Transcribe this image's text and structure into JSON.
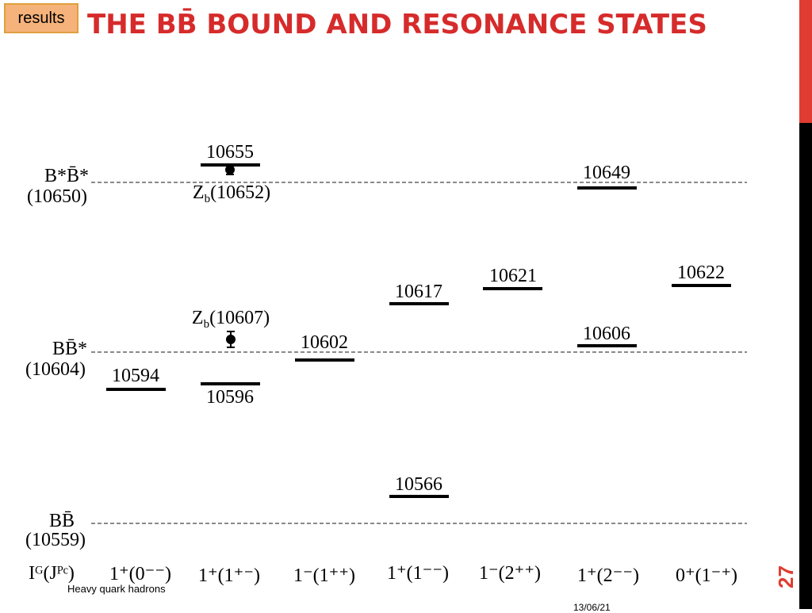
{
  "header": {
    "badge": "results",
    "title": "THE BB̄ BOUND AND RESONANCE STATES"
  },
  "thresholds": [
    {
      "label": "B*B̄*",
      "mass": "(10650)"
    },
    {
      "label": "BB̄*",
      "mass": "(10604)"
    },
    {
      "label": "BB̄",
      "mass": "(10559)"
    }
  ],
  "levels": [
    "10655",
    "10649",
    "10622",
    "10621",
    "10617",
    "10606",
    "10602",
    "10594",
    "10596",
    "10566"
  ],
  "resonances": [
    {
      "symbol": "Z",
      "subscript": "b",
      "mass": "(10652)"
    },
    {
      "symbol": "Z",
      "subscript": "b",
      "mass": "(10607)"
    }
  ],
  "quantum_numbers": [
    "Iᴳ(Jᴾᶜ)",
    "1⁺(0⁻⁻)",
    "1⁺(1⁺⁻)",
    "1⁻(1⁺⁺)",
    "1⁺(1⁻⁻)",
    "1⁻(2⁺⁺)",
    "1⁺(2⁻⁻)",
    "0⁺(1⁻⁺)"
  ],
  "footer": {
    "text": "Heavy quark hadrons",
    "date": "13/06/21",
    "page": "27"
  }
}
